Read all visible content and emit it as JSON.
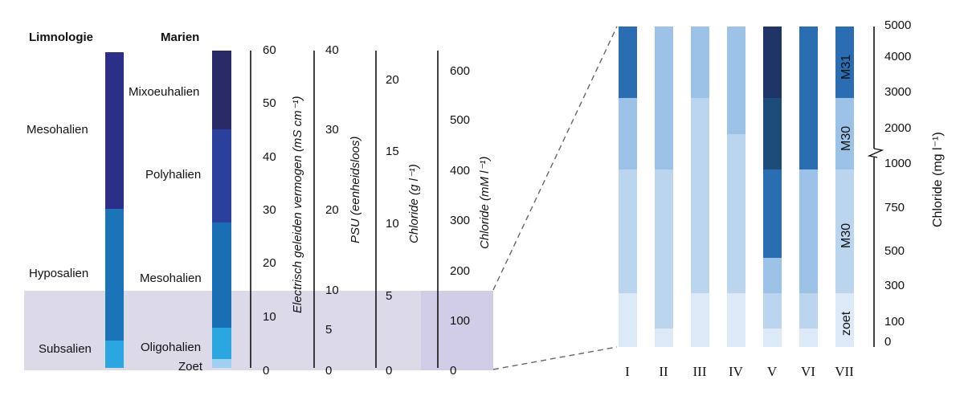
{
  "headers": {
    "limnologie": "Limnologie",
    "marien": "Marien"
  },
  "limnologie_classes": [
    "Mesohalien",
    "Hyposalien",
    "Subsalien"
  ],
  "marien_classes": [
    "Mixoeuhalien",
    "Polyhalien",
    "Mesohalien",
    "Oligohalien",
    "Zoet"
  ],
  "scales": [
    {
      "title": "Electrisch geleiden vermogen (mS cm⁻¹)",
      "ticks": [
        "60",
        "50",
        "40",
        "30",
        "20",
        "10",
        "0"
      ]
    },
    {
      "title": "PSU (eenheidsloos)",
      "ticks": [
        "40",
        "30",
        "20",
        "10",
        "5",
        "0"
      ]
    },
    {
      "title": "Chloride (g l⁻¹)",
      "ticks": [
        "20",
        "15",
        "10",
        "5",
        "0"
      ]
    },
    {
      "title": "Chloride (mM l⁻¹)",
      "ticks": [
        "600",
        "500",
        "400",
        "300",
        "200",
        "100",
        "0"
      ]
    }
  ],
  "right_axis": {
    "title": "Chloride (mg l⁻¹)",
    "ticks": [
      "5000",
      "4000",
      "3000",
      "2000",
      "1000",
      "750",
      "500",
      "300",
      "100",
      "0"
    ]
  },
  "column_labels": [
    "I",
    "II",
    "III",
    "IV",
    "V",
    "VI",
    "VII"
  ],
  "segment_labels": [
    "M31",
    "M30",
    "M30",
    "zoet"
  ],
  "colors": {
    "limno": [
      "#2b2f8a",
      "#1b73b8",
      "#2ba6e0"
    ],
    "marien": [
      "#2a2a66",
      "#2b3f9c",
      "#1a6fb4",
      "#2aa7e0",
      "#9fd0f2"
    ],
    "band": "#dcdae8",
    "band_dark": "#d2cde6",
    "cols": {
      "a": "#2a6db3",
      "b": "#9cc2e8",
      "c": "#bcd5ef",
      "d": "#dce9f7",
      "e": "#1e3566",
      "f": "#1d4c7a"
    }
  }
}
